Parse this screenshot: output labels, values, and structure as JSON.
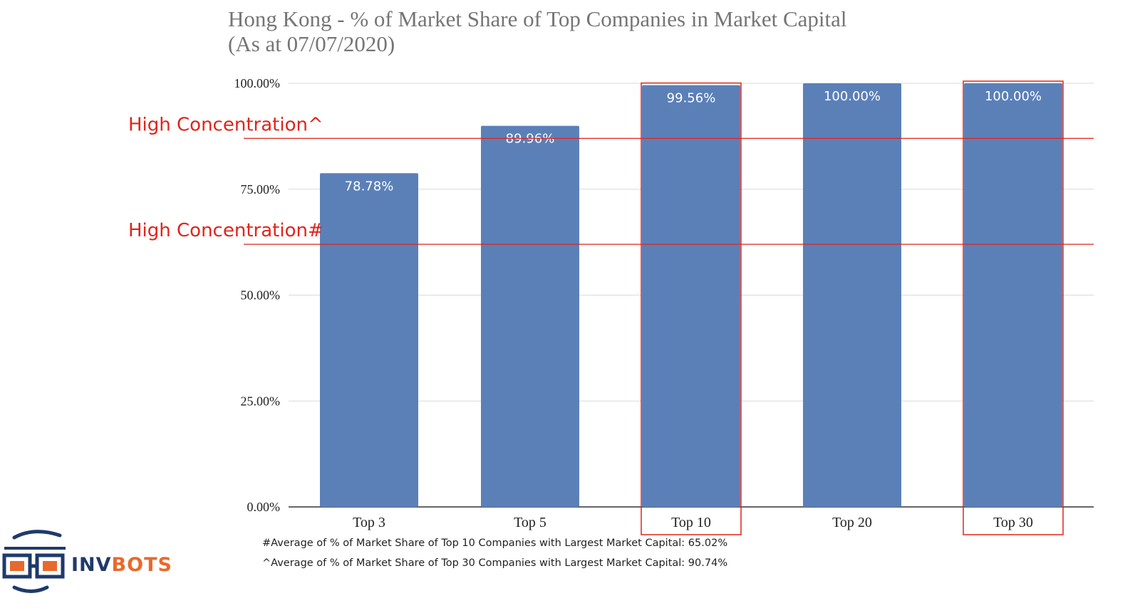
{
  "chart_data": {
    "type": "bar",
    "title_line1": "Hong Kong - % of Market Share of Top Companies in Market Capital",
    "title_line2": "(As at 07/07/2020)",
    "categories": [
      "Top 3",
      "Top 5",
      "Top 10",
      "Top 20",
      "Top 30"
    ],
    "values": [
      78.78,
      89.96,
      99.56,
      100.0,
      100.0
    ],
    "data_labels": [
      "78.78%",
      "89.96%",
      "99.56%",
      "100.00%",
      "100.00%"
    ],
    "yticks": [
      0,
      25,
      50,
      75,
      100
    ],
    "ytick_labels": [
      "0.00%",
      "25.00%",
      "50.00%",
      "75.00%",
      "100.00%"
    ],
    "ylim": [
      0,
      100
    ],
    "xlabel": "",
    "ylabel": "",
    "grid": true,
    "bar_color": "#5b80b8",
    "highlighted_categories": [
      "Top 10",
      "Top 30"
    ],
    "reference_lines": [
      {
        "label": "High Concentration^",
        "value": 87.0
      },
      {
        "label": "High Concentration#",
        "value": 62.0
      }
    ]
  },
  "footnotes": [
    "#Average of % of Market Share of Top 10 Companies with Largest Market Capital: 65.02%",
    "^Average of % of Market Share of Top 30 Companies with Largest Market Capital: 90.74%"
  ],
  "logo": {
    "text_part1": "INV",
    "text_part2": "BOTS",
    "color_part1": "#1f3a6b",
    "color_part2": "#e8692c"
  },
  "colors": {
    "annotation_red": "#e0241b",
    "grid": "#d9d9d9",
    "axis": "#333333"
  }
}
